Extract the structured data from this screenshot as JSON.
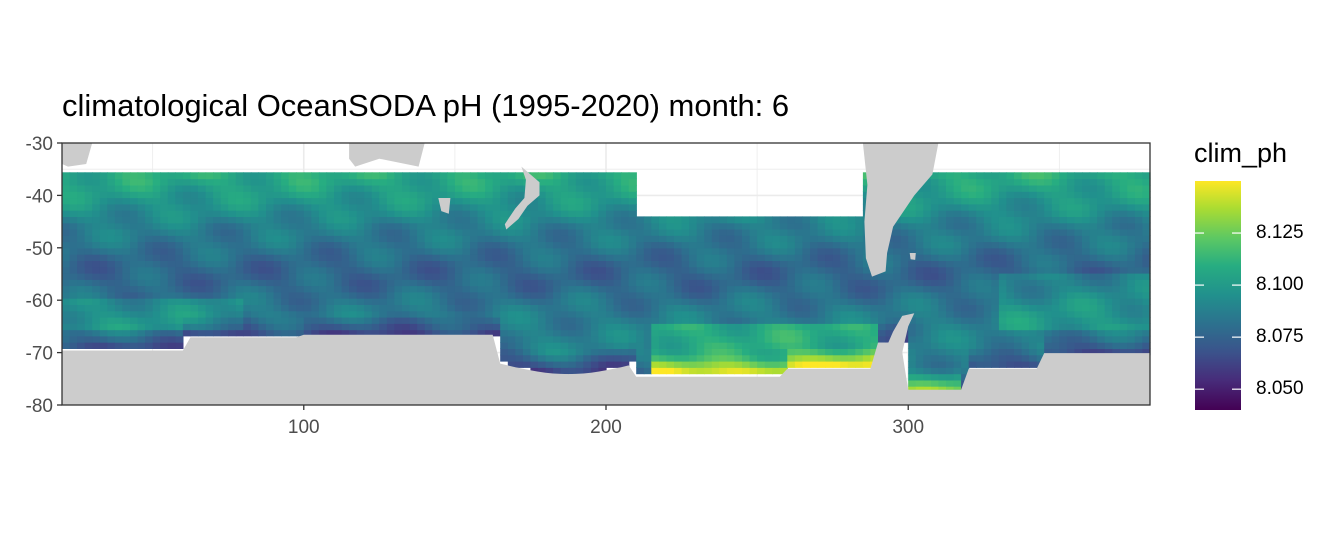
{
  "title": "climatological OceanSODA pH (1995-2020) month: 6",
  "chart_data": {
    "type": "heatmap",
    "title": "climatological OceanSODA pH (1995-2020) month: 6",
    "xlabel": "",
    "ylabel": "",
    "xlim": [
      20,
      380
    ],
    "ylim": [
      -80,
      -30
    ],
    "x_ticks": [
      100,
      200,
      300
    ],
    "y_ticks": [
      -30,
      -40,
      -50,
      -60,
      -70,
      -80
    ],
    "x_tick_labels": [
      "100",
      "200",
      "300"
    ],
    "y_tick_labels": [
      "-30",
      "-40",
      "-50",
      "-60",
      "-70",
      "-80"
    ],
    "grid": true,
    "colorscale": "viridis",
    "legend": {
      "title": "clim_ph",
      "position": "right",
      "ticks": [
        8.05,
        8.075,
        8.1,
        8.125
      ],
      "tick_labels": [
        "8.050",
        "8.075",
        "8.100",
        "8.125"
      ],
      "range": [
        8.04,
        8.15
      ]
    },
    "land_color": "#cccccc",
    "panel_border_color": "#333333",
    "grid_color": "#ebebeb"
  }
}
